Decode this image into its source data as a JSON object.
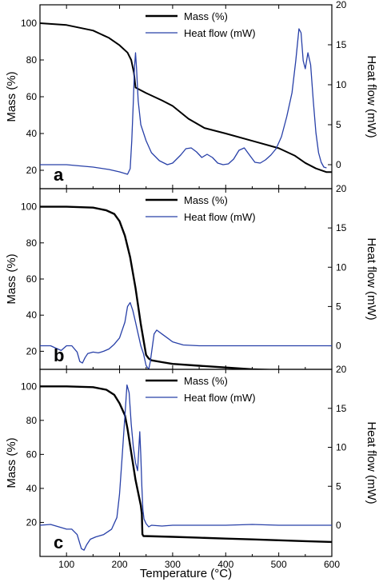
{
  "chart_data": [
    {
      "type": "line",
      "panel_label": "a",
      "xlim": [
        50,
        600
      ],
      "ylim_left": [
        10,
        110
      ],
      "ylim_right": [
        -3,
        20
      ],
      "ylabel_left": "Mass (%)",
      "ylabel_right": "Heat flow (mW)",
      "left_ticks": [
        20,
        40,
        60,
        80,
        100
      ],
      "right_ticks": [
        0,
        5,
        10,
        15,
        20
      ],
      "legend_position": "top-center",
      "series": [
        {
          "name": "Mass (%)",
          "axis": "left",
          "color": "#000000",
          "x": [
            50,
            100,
            150,
            180,
            200,
            215,
            222,
            227,
            230,
            250,
            280,
            300,
            330,
            360,
            400,
            450,
            500,
            530,
            550,
            570,
            590,
            600
          ],
          "y": [
            100,
            99,
            96,
            92,
            88,
            84,
            80,
            73,
            65,
            62,
            58,
            55,
            48,
            43,
            40,
            36,
            32,
            28,
            24,
            21,
            19,
            19
          ]
        },
        {
          "name": "Heat flow (mW)",
          "axis": "right",
          "color": "#2840a8",
          "x": [
            50,
            100,
            150,
            180,
            200,
            215,
            220,
            223,
            226,
            228,
            230,
            232,
            235,
            240,
            250,
            260,
            275,
            290,
            300,
            315,
            325,
            335,
            345,
            355,
            365,
            375,
            385,
            395,
            405,
            415,
            425,
            435,
            445,
            455,
            465,
            475,
            485,
            495,
            505,
            515,
            525,
            532,
            538,
            542,
            546,
            550,
            555,
            560,
            565,
            570,
            575,
            580,
            585,
            590
          ],
          "y": [
            0,
            0,
            -0.3,
            -0.6,
            -0.9,
            -1.2,
            -0.5,
            3,
            8,
            12,
            14,
            12,
            8,
            5,
            3,
            1.5,
            0.5,
            0,
            0.2,
            1.2,
            2,
            2.1,
            1.6,
            0.9,
            1.3,
            0.9,
            0.2,
            0,
            0.1,
            0.7,
            1.8,
            2.1,
            1.2,
            0.3,
            0.2,
            0.6,
            1.2,
            2.0,
            3.5,
            6,
            9,
            13,
            17,
            16.5,
            13,
            12,
            14,
            12.5,
            8,
            4,
            1.5,
            0.3,
            -0.3,
            -0.4
          ]
        }
      ]
    },
    {
      "type": "line",
      "panel_label": "b",
      "xlim": [
        50,
        600
      ],
      "ylim_left": [
        10,
        110
      ],
      "ylim_right": [
        -3,
        20
      ],
      "ylabel_left": "Mass (%)",
      "ylabel_right": "Heat flow (mW)",
      "left_ticks": [
        20,
        40,
        60,
        80,
        100
      ],
      "right_ticks": [
        0,
        5,
        10,
        15,
        20
      ],
      "legend_position": "top-center",
      "series": [
        {
          "name": "Mass (%)",
          "axis": "left",
          "color": "#000000",
          "x": [
            50,
            100,
            150,
            175,
            190,
            200,
            210,
            220,
            230,
            240,
            250,
            255,
            260,
            280,
            300,
            350,
            400,
            450,
            500,
            550,
            600
          ],
          "y": [
            100,
            100,
            99.5,
            98,
            96,
            92,
            84,
            72,
            55,
            35,
            18,
            16,
            15,
            14,
            13,
            12,
            11,
            10,
            9.5,
            9,
            8
          ]
        },
        {
          "name": "Heat flow (mW)",
          "axis": "right",
          "color": "#2840a8",
          "x": [
            50,
            70,
            80,
            90,
            100,
            110,
            120,
            125,
            130,
            135,
            140,
            150,
            160,
            170,
            180,
            190,
            200,
            210,
            215,
            220,
            225,
            230,
            235,
            240,
            245,
            250,
            255,
            258,
            262,
            265,
            270,
            280,
            290,
            300,
            320,
            350,
            400,
            450,
            500,
            550,
            600
          ],
          "y": [
            0,
            0,
            -0.3,
            -0.6,
            0,
            0,
            -0.8,
            -2,
            -2.2,
            -1.5,
            -1,
            -0.8,
            -0.9,
            -0.7,
            -0.4,
            0.2,
            1,
            3,
            5,
            5.5,
            4.5,
            3,
            1.5,
            0,
            -1,
            -2.5,
            -3,
            -2,
            0,
            1.5,
            2,
            1.5,
            1,
            0.5,
            0.1,
            0,
            0,
            0,
            0,
            0,
            0
          ]
        }
      ]
    },
    {
      "type": "line",
      "panel_label": "c",
      "xlim": [
        50,
        600
      ],
      "ylim_left": [
        0,
        110
      ],
      "ylim_right": [
        -4,
        20
      ],
      "xlabel": "Temperature (°C)",
      "ylabel_left": "Mass (%)",
      "ylabel_right": "Heat flow (mW)",
      "x_ticks": [
        100,
        200,
        300,
        400,
        500,
        600
      ],
      "left_ticks": [
        20,
        40,
        60,
        80,
        100
      ],
      "right_ticks": [
        0,
        5,
        10,
        15,
        20
      ],
      "legend_position": "top-center",
      "series": [
        {
          "name": "Mass (%)",
          "axis": "left",
          "color": "#000000",
          "x": [
            50,
            100,
            150,
            175,
            190,
            200,
            210,
            215,
            220,
            230,
            240,
            242,
            243,
            245,
            300,
            350,
            400,
            450,
            500,
            550,
            600
          ],
          "y": [
            100,
            100,
            99.5,
            98,
            95,
            90,
            83,
            75,
            65,
            45,
            30,
            25,
            13,
            12,
            11.5,
            11,
            10.5,
            10,
            9.5,
            9,
            8.5
          ]
        },
        {
          "name": "Heat flow (mW)",
          "axis": "right",
          "color": "#2840a8",
          "x": [
            50,
            70,
            90,
            100,
            110,
            120,
            128,
            133,
            138,
            145,
            155,
            170,
            185,
            195,
            200,
            205,
            210,
            214,
            218,
            222,
            226,
            230,
            234,
            238,
            240,
            242,
            244,
            246,
            250,
            255,
            260,
            280,
            300,
            350,
            400,
            450,
            500,
            550,
            600
          ],
          "y": [
            0,
            0.1,
            -0.3,
            -0.5,
            -0.5,
            -1.2,
            -3,
            -3.2,
            -2.5,
            -1.8,
            -1.5,
            -1.2,
            -0.5,
            1,
            4,
            9,
            14,
            18,
            17,
            13,
            10,
            8,
            7,
            12,
            9,
            5,
            2,
            0.8,
            0.2,
            -0.2,
            0,
            -0.1,
            0,
            0,
            0,
            0.1,
            0,
            0,
            0
          ]
        }
      ]
    }
  ]
}
